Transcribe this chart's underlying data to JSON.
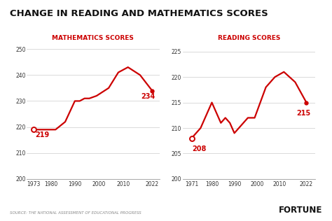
{
  "title": "CHANGE IN READING AND MATHEMATICS SCORES",
  "math_label": "MATHEMATICS SCORES",
  "reading_label": "READING SCORES",
  "math_x": [
    1973,
    1978,
    1982,
    1986,
    1990,
    1992,
    1994,
    1996,
    1999,
    2004,
    2008,
    2012,
    2017,
    2022
  ],
  "math_y": [
    219,
    219,
    219,
    222,
    230,
    230,
    231,
    231,
    232,
    235,
    241,
    243,
    240,
    234
  ],
  "math_end_label": "234",
  "math_start_label": "219",
  "math_ylim": [
    200,
    251
  ],
  "math_yticks": [
    200,
    210,
    220,
    230,
    240,
    250
  ],
  "math_xticks": [
    1973,
    1980,
    1990,
    2000,
    2010,
    2022
  ],
  "reading_x": [
    1971,
    1975,
    1980,
    1984,
    1986,
    1988,
    1990,
    1992,
    1994,
    1996,
    1999,
    2004,
    2008,
    2012,
    2017,
    2022
  ],
  "reading_y": [
    208,
    210,
    215,
    211,
    212,
    211,
    209,
    210,
    211,
    212,
    212,
    218,
    220,
    221,
    219,
    215
  ],
  "reading_end_label": "215",
  "reading_start_label": "208",
  "reading_ylim": [
    200,
    226
  ],
  "reading_yticks": [
    200,
    205,
    210,
    215,
    220,
    225
  ],
  "reading_xticks": [
    1971,
    1980,
    1990,
    2000,
    2010,
    2022
  ],
  "line_color": "#cc0000",
  "bg_color": "#ffffff",
  "source_text": "SOURCE: THE NATIONAL ASSESSMENT OF EDUCATIONAL PROGRESS",
  "fortune_text": "FORTUNE",
  "title_fontsize": 9.5,
  "label_fontsize": 6.5,
  "tick_fontsize": 5.5,
  "annotation_fontsize": 7
}
